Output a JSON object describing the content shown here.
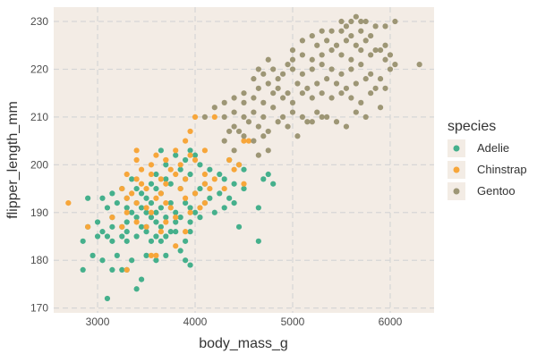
{
  "chart_data": {
    "type": "scatter",
    "title": "",
    "xlabel": "body_mass_g",
    "ylabel": "flipper_length_mm",
    "xlim": [
      2550,
      6450
    ],
    "ylim": [
      169,
      233
    ],
    "xticks": [
      3000,
      4000,
      5000,
      6000
    ],
    "yticks": [
      170,
      180,
      190,
      200,
      210,
      220,
      230
    ],
    "grid": true,
    "legend_title": "species",
    "legend_position": "right",
    "colors": {
      "panel_background": "#f3ece5",
      "grid": "#d6d6d6",
      "axis_text": "#4d4d4d",
      "axis_title": "#333333"
    },
    "series": [
      {
        "name": "Adelie",
        "color": "#45b08c",
        "points": [
          [
            3100,
            172
          ],
          [
            3400,
            174
          ],
          [
            3450,
            176
          ],
          [
            3300,
            178
          ],
          [
            3150,
            178
          ],
          [
            2850,
            178
          ],
          [
            3250,
            178
          ],
          [
            3050,
            180
          ],
          [
            3350,
            180
          ],
          [
            3500,
            181
          ],
          [
            3700,
            181
          ],
          [
            3900,
            180
          ],
          [
            3950,
            179
          ],
          [
            3600,
            180
          ],
          [
            2950,
            181
          ],
          [
            3200,
            181
          ],
          [
            3850,
            182
          ],
          [
            3150,
            184
          ],
          [
            3300,
            184
          ],
          [
            3550,
            184
          ],
          [
            3650,
            184
          ],
          [
            3900,
            184
          ],
          [
            4650,
            184
          ],
          [
            2850,
            184
          ],
          [
            3000,
            185
          ],
          [
            3250,
            185
          ],
          [
            3400,
            185
          ],
          [
            3600,
            185
          ],
          [
            3100,
            185
          ],
          [
            3700,
            185
          ],
          [
            3050,
            186
          ],
          [
            3300,
            186
          ],
          [
            3500,
            186
          ],
          [
            3750,
            186
          ],
          [
            3800,
            186
          ],
          [
            3950,
            186
          ],
          [
            3500,
            187
          ],
          [
            3250,
            187
          ],
          [
            3150,
            187
          ],
          [
            2900,
            187
          ],
          [
            3450,
            187
          ],
          [
            3650,
            187
          ],
          [
            4450,
            187
          ],
          [
            3000,
            188
          ],
          [
            3300,
            188
          ],
          [
            3600,
            188
          ],
          [
            3800,
            188
          ],
          [
            3950,
            188
          ],
          [
            3400,
            189
          ],
          [
            3550,
            189
          ],
          [
            3700,
            189
          ],
          [
            3850,
            189
          ],
          [
            4050,
            189
          ],
          [
            3150,
            189
          ],
          [
            3350,
            190
          ],
          [
            3500,
            190
          ],
          [
            3600,
            190
          ],
          [
            3800,
            190
          ],
          [
            4000,
            190
          ],
          [
            4200,
            190
          ],
          [
            3300,
            191
          ],
          [
            3450,
            191
          ],
          [
            3650,
            191
          ],
          [
            3950,
            191
          ],
          [
            4300,
            191
          ],
          [
            4650,
            191
          ],
          [
            3100,
            191
          ],
          [
            3200,
            192
          ],
          [
            3400,
            192
          ],
          [
            3550,
            192
          ],
          [
            3750,
            192
          ],
          [
            3900,
            192
          ],
          [
            4100,
            192
          ],
          [
            4400,
            192
          ],
          [
            3050,
            193
          ],
          [
            3300,
            193
          ],
          [
            3500,
            193
          ],
          [
            4150,
            193
          ],
          [
            4350,
            193
          ],
          [
            2900,
            193
          ],
          [
            3150,
            194
          ],
          [
            3450,
            194
          ],
          [
            3650,
            194
          ],
          [
            4000,
            194
          ],
          [
            4250,
            194
          ],
          [
            3400,
            195
          ],
          [
            3600,
            195
          ],
          [
            3850,
            195
          ],
          [
            4050,
            195
          ],
          [
            4500,
            195
          ],
          [
            3250,
            195
          ],
          [
            3550,
            196
          ],
          [
            3750,
            196
          ],
          [
            4100,
            196
          ],
          [
            4400,
            196
          ],
          [
            4800,
            196
          ],
          [
            3350,
            197
          ],
          [
            3700,
            197
          ],
          [
            3900,
            197
          ],
          [
            4300,
            197
          ],
          [
            4700,
            197
          ],
          [
            3600,
            198
          ],
          [
            3950,
            198
          ],
          [
            4250,
            198
          ],
          [
            4750,
            198
          ],
          [
            3850,
            199
          ],
          [
            4150,
            199
          ],
          [
            4500,
            199
          ],
          [
            3700,
            200
          ],
          [
            4050,
            200
          ],
          [
            4450,
            200
          ],
          [
            3900,
            201
          ],
          [
            4350,
            201
          ],
          [
            3800,
            202
          ],
          [
            4000,
            202
          ],
          [
            3650,
            203
          ],
          [
            3950,
            203
          ]
        ]
      },
      {
        "name": "Chinstrap",
        "color": "#f7a63a",
        "points": [
          [
            2700,
            192
          ],
          [
            3300,
            178
          ],
          [
            3550,
            181
          ],
          [
            3600,
            181
          ],
          [
            3800,
            183
          ],
          [
            3650,
            186
          ],
          [
            3900,
            186
          ],
          [
            3500,
            187
          ],
          [
            2900,
            187
          ],
          [
            3250,
            187
          ],
          [
            3700,
            188
          ],
          [
            3400,
            188
          ],
          [
            3800,
            189
          ],
          [
            3150,
            189
          ],
          [
            3300,
            190
          ],
          [
            3550,
            190
          ],
          [
            3950,
            190
          ],
          [
            3500,
            191
          ],
          [
            3750,
            191
          ],
          [
            4050,
            191
          ],
          [
            3400,
            192
          ],
          [
            3700,
            192
          ],
          [
            4100,
            192
          ],
          [
            3600,
            193
          ],
          [
            3900,
            193
          ],
          [
            3350,
            194
          ],
          [
            3650,
            194
          ],
          [
            4000,
            194
          ],
          [
            3250,
            195
          ],
          [
            3500,
            195
          ],
          [
            3850,
            195
          ],
          [
            4150,
            195
          ],
          [
            4300,
            195
          ],
          [
            3450,
            196
          ],
          [
            3700,
            196
          ],
          [
            4100,
            196
          ],
          [
            4500,
            196
          ],
          [
            3400,
            197
          ],
          [
            3650,
            197
          ],
          [
            3900,
            197
          ],
          [
            4200,
            197
          ],
          [
            3300,
            198
          ],
          [
            3550,
            198
          ],
          [
            3800,
            198
          ],
          [
            4100,
            198
          ],
          [
            3450,
            199
          ],
          [
            3750,
            199
          ],
          [
            4400,
            199
          ],
          [
            3550,
            200
          ],
          [
            3850,
            200
          ],
          [
            4450,
            200
          ],
          [
            3400,
            201
          ],
          [
            3700,
            201
          ],
          [
            4000,
            201
          ],
          [
            4350,
            201
          ],
          [
            3600,
            202
          ],
          [
            3950,
            202
          ],
          [
            3400,
            203
          ],
          [
            4100,
            203
          ],
          [
            3800,
            203
          ],
          [
            3900,
            205
          ],
          [
            4500,
            205
          ],
          [
            4550,
            205
          ],
          [
            3950,
            207
          ],
          [
            4000,
            210
          ],
          [
            4200,
            210
          ],
          [
            3700,
            201
          ],
          [
            3300,
            193
          ]
        ]
      },
      {
        "name": "Gentoo",
        "color": "#9d9675",
        "points": [
          [
            4300,
            205
          ],
          [
            4350,
            207
          ],
          [
            4400,
            208
          ],
          [
            4450,
            207
          ],
          [
            4500,
            206
          ],
          [
            4600,
            205
          ],
          [
            4700,
            206
          ],
          [
            4650,
            202
          ],
          [
            4750,
            203
          ],
          [
            4400,
            203
          ],
          [
            4100,
            210
          ],
          [
            4200,
            212
          ],
          [
            4300,
            210
          ],
          [
            4400,
            211
          ],
          [
            4500,
            210
          ],
          [
            4600,
            211
          ],
          [
            4700,
            210
          ],
          [
            4800,
            212
          ],
          [
            4900,
            210
          ],
          [
            5000,
            211
          ],
          [
            5100,
            210
          ],
          [
            5200,
            209
          ],
          [
            5300,
            210
          ],
          [
            4550,
            209
          ],
          [
            4650,
            208
          ],
          [
            4750,
            207
          ],
          [
            4850,
            209
          ],
          [
            4950,
            208
          ],
          [
            5050,
            206
          ],
          [
            5150,
            209
          ],
          [
            5250,
            211
          ],
          [
            5350,
            210
          ],
          [
            5450,
            209
          ],
          [
            5550,
            208
          ],
          [
            4300,
            213
          ],
          [
            4400,
            214
          ],
          [
            4500,
            213
          ],
          [
            4600,
            214
          ],
          [
            4700,
            213
          ],
          [
            4800,
            215
          ],
          [
            4900,
            214
          ],
          [
            5000,
            213
          ],
          [
            5100,
            215
          ],
          [
            5200,
            214
          ],
          [
            5300,
            215
          ],
          [
            5400,
            214
          ],
          [
            5500,
            215
          ],
          [
            5600,
            214
          ],
          [
            5700,
            213
          ],
          [
            5800,
            215
          ],
          [
            5900,
            212
          ],
          [
            5650,
            211
          ],
          [
            5750,
            210
          ],
          [
            4500,
            215
          ],
          [
            4650,
            216
          ],
          [
            4750,
            217
          ],
          [
            4850,
            216
          ],
          [
            4950,
            215
          ],
          [
            5050,
            217
          ],
          [
            5150,
            216
          ],
          [
            5250,
            217
          ],
          [
            5350,
            218
          ],
          [
            5450,
            217
          ],
          [
            5550,
            216
          ],
          [
            5650,
            217
          ],
          [
            5750,
            218
          ],
          [
            5850,
            216
          ],
          [
            5950,
            216
          ],
          [
            4600,
            218
          ],
          [
            4700,
            219
          ],
          [
            4800,
            220
          ],
          [
            4900,
            219
          ],
          [
            5000,
            220
          ],
          [
            5100,
            219
          ],
          [
            5200,
            220
          ],
          [
            5300,
            221
          ],
          [
            5400,
            220
          ],
          [
            5500,
            219
          ],
          [
            5600,
            220
          ],
          [
            5700,
            221
          ],
          [
            5800,
            219
          ],
          [
            5900,
            218
          ],
          [
            6000,
            220
          ],
          [
            6050,
            221
          ],
          [
            5000,
            222
          ],
          [
            5100,
            223
          ],
          [
            5200,
            222
          ],
          [
            5300,
            223
          ],
          [
            5400,
            224
          ],
          [
            5500,
            223
          ],
          [
            5600,
            222
          ],
          [
            5700,
            224
          ],
          [
            5800,
            223
          ],
          [
            5900,
            224
          ],
          [
            5000,
            224
          ],
          [
            5250,
            225
          ],
          [
            5350,
            226
          ],
          [
            5450,
            225
          ],
          [
            5550,
            226
          ],
          [
            5650,
            225
          ],
          [
            5750,
            226
          ],
          [
            5850,
            224
          ],
          [
            5950,
            225
          ],
          [
            5200,
            227
          ],
          [
            5400,
            228
          ],
          [
            5500,
            228
          ],
          [
            5600,
            227
          ],
          [
            5700,
            228
          ],
          [
            5800,
            227
          ],
          [
            5950,
            229
          ],
          [
            5500,
            230
          ],
          [
            5600,
            230
          ],
          [
            5700,
            230
          ],
          [
            5750,
            230
          ],
          [
            5650,
            231
          ],
          [
            6050,
            230
          ],
          [
            6300,
            221
          ],
          [
            6000,
            223
          ],
          [
            5950,
            222
          ],
          [
            5300,
            228
          ],
          [
            5100,
            226
          ],
          [
            4950,
            221
          ],
          [
            4850,
            218
          ],
          [
            4750,
            222
          ],
          [
            4650,
            220
          ],
          [
            5550,
            229
          ],
          [
            5850,
            229
          ]
        ]
      }
    ]
  }
}
